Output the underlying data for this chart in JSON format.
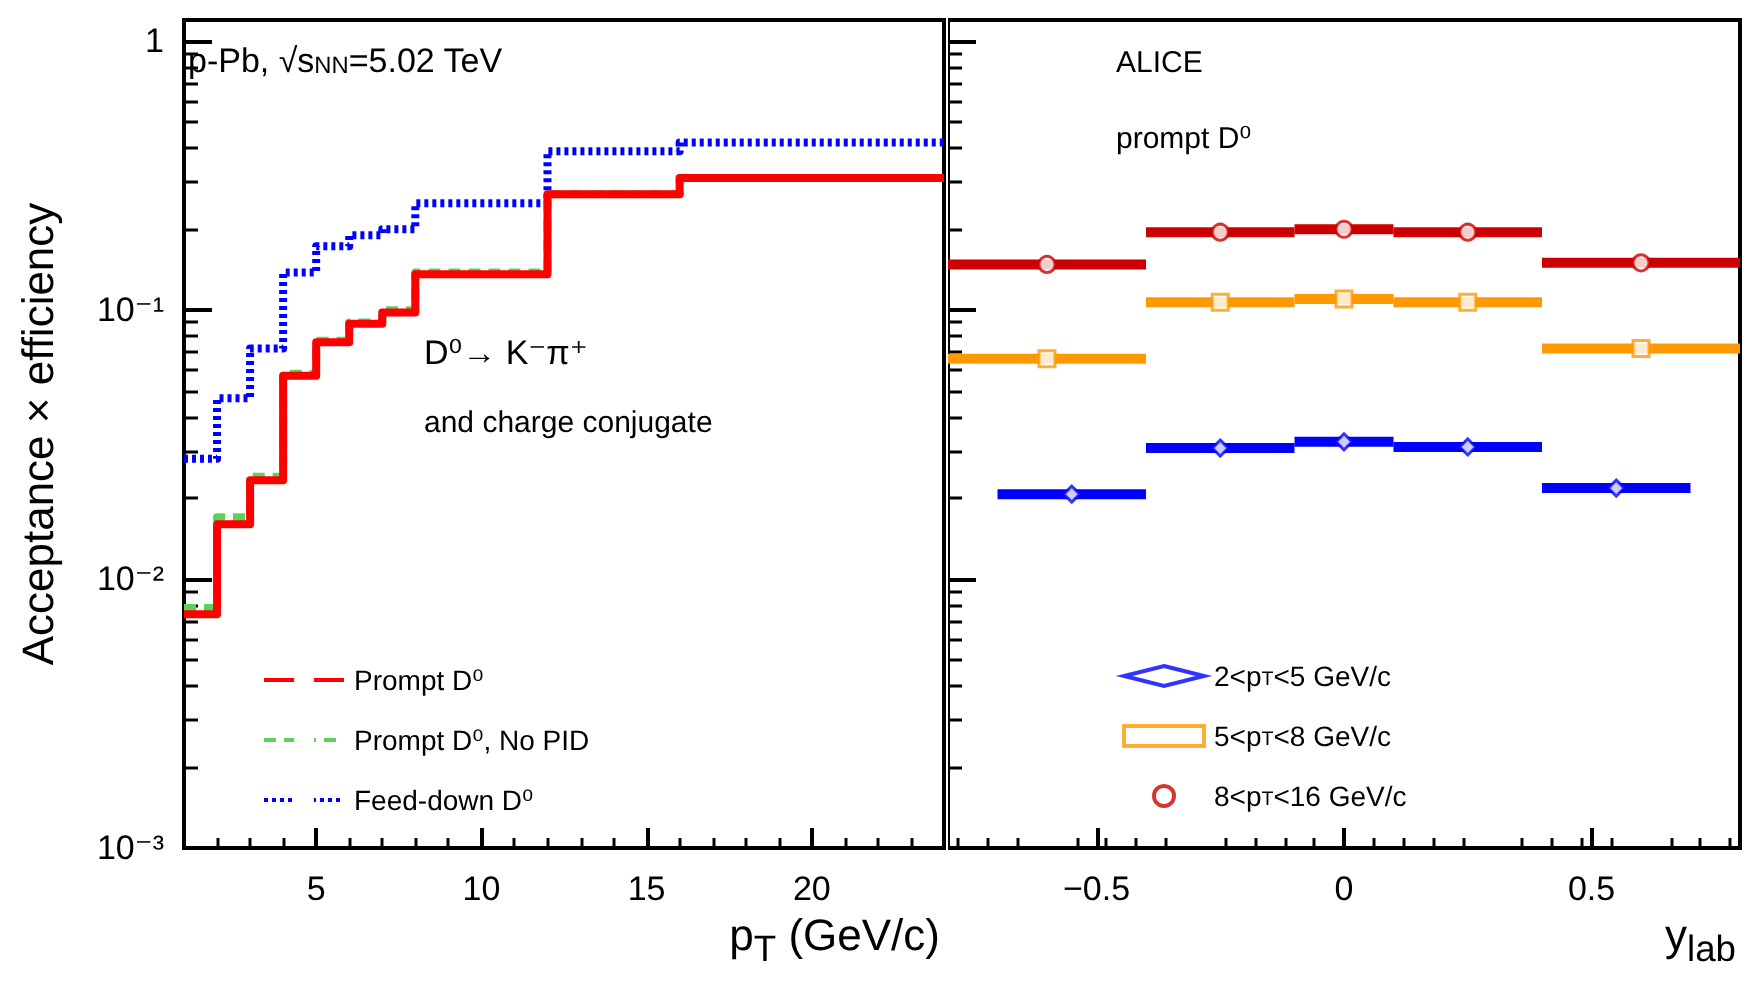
{
  "chart_data": [
    {
      "type": "histogram",
      "ylabel": "Acceptance × efficiency",
      "xlabel": "p$_{T}$ (GeV/c)",
      "annotations": [
        "p-Pb, √s$_{NN}$=5.02 TeV",
        "D⁰→ K⁻π⁺",
        "and charge conjugate"
      ],
      "bins": [
        1,
        2,
        3,
        4,
        5,
        6,
        7,
        8,
        12,
        16,
        24
      ],
      "series": [
        {
          "name": "Prompt D⁰",
          "color": "#ff0000",
          "line_style": "solid",
          "values": [
            0.0074,
            0.016,
            0.0233,
            0.057,
            0.076,
            0.089,
            0.098,
            0.136,
            0.27,
            0.31
          ]
        },
        {
          "name": "Prompt D⁰, No PID",
          "color": "#5bd35b",
          "line_style": "dashed",
          "values": [
            0.0078,
            0.017,
            0.024,
            0.058,
            0.077,
            0.09,
            0.1,
            0.138,
            0.27,
            0.31
          ]
        },
        {
          "name": "Feed-down D⁰",
          "color": "#0000ff",
          "line_style": "dotted",
          "values": [
            0.028,
            0.047,
            0.072,
            0.138,
            0.173,
            0.19,
            0.2,
            0.25,
            0.39,
            0.42
          ]
        }
      ],
      "xlim": [
        1,
        24
      ],
      "xticks": [
        5,
        10,
        15,
        20
      ],
      "ylim": [
        0.001,
        1.2
      ],
      "yticks": [
        {
          "value": 0.001,
          "label": "10⁻³"
        },
        {
          "value": 0.01,
          "label": "10⁻²"
        },
        {
          "value": 0.1,
          "label": "10⁻¹"
        },
        1
      ],
      "log": true,
      "legend": "bottom left"
    },
    {
      "type": "scatter",
      "xlabel": "y$_{lab}$",
      "annotations": [
        "ALICE",
        "prompt D⁰"
      ],
      "series": [
        {
          "name": "2<p$_{T}$<5 GeV/c",
          "color": "#0000ff",
          "marker": "diamond",
          "x": [
            -0.55,
            -0.25,
            0,
            0.25,
            0.55
          ],
          "xerrors": [
            [
              -0.7,
              -0.4
            ],
            [
              -0.4,
              -0.1
            ],
            [
              -0.1,
              0.1
            ],
            [
              0.1,
              0.4
            ],
            [
              0.4,
              0.7
            ]
          ],
          "values": [
            0.0207,
            0.0307,
            0.0324,
            0.031,
            0.0218
          ]
        },
        {
          "name": "5<p$_{T}$<8 GeV/c",
          "color": "#ff9900",
          "marker": "square",
          "x": [
            -0.6,
            -0.25,
            0,
            0.25,
            0.6
          ],
          "xerrors": [
            [
              -0.8,
              -0.4
            ],
            [
              -0.4,
              -0.1
            ],
            [
              -0.1,
              0.1
            ],
            [
              0.1,
              0.4
            ],
            [
              0.4,
              0.8
            ]
          ],
          "values": [
            0.066,
            0.107,
            0.11,
            0.107,
            0.072
          ]
        },
        {
          "name": "8<p$_{T}$<16 GeV/c",
          "color": "#cc0000",
          "marker": "circle",
          "x": [
            -0.6,
            -0.25,
            0,
            0.25,
            0.6
          ],
          "xerrors": [
            [
              -0.8,
              -0.4
            ],
            [
              -0.4,
              -0.1
            ],
            [
              -0.1,
              0.1
            ],
            [
              0.1,
              0.4
            ],
            [
              0.4,
              0.8
            ]
          ],
          "values": [
            0.148,
            0.195,
            0.2,
            0.195,
            0.15
          ]
        }
      ],
      "xlim": [
        -0.8,
        0.8
      ],
      "xticks": [
        {
          "value": -0.5,
          "label": "−0.5"
        },
        0,
        0.5
      ],
      "ylim": [
        0.001,
        1.2
      ],
      "yticks": [
        0.001,
        0.01,
        0.1,
        1
      ],
      "log": true,
      "tick_labels": "x",
      "legend": "bottom"
    }
  ]
}
